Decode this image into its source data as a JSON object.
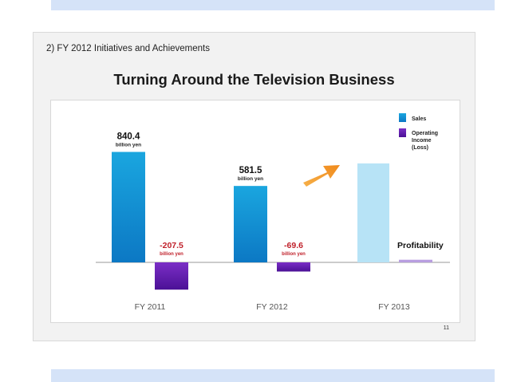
{
  "slide": {
    "heading": "2) FY 2012 Initiatives and Achievements",
    "title": "Turning Around the Television Business",
    "page_number": "11"
  },
  "colors": {
    "sales_top": "#1aa6df",
    "sales_bottom": "#0c78c4",
    "operating_top": "#7b2ec6",
    "operating_bottom": "#4b1196",
    "negative_label": "#c0202a",
    "forecast_sales": "#b7e3f6",
    "forecast_operating": "#b89ee0",
    "arrow": "#f08a1c"
  },
  "chart_data": {
    "type": "bar",
    "categories": [
      "FY 2011",
      "FY 2012",
      "FY 2013"
    ],
    "series": [
      {
        "name": "Sales",
        "values": [
          840.4,
          581.5,
          null
        ],
        "labels": [
          "840.4",
          "581.5",
          ""
        ]
      },
      {
        "name": "Operating Income (Loss)",
        "values": [
          -207.5,
          -69.6,
          null
        ],
        "labels": [
          "-207.5",
          "-69.6",
          ""
        ]
      }
    ],
    "unit_label": "billion yen",
    "forecast": {
      "category": "FY 2013",
      "sales_value": 753,
      "operating_value": 20,
      "annotation": "Profitability"
    },
    "legend": {
      "position": "top-right",
      "entries": [
        "Sales",
        "Operating Income (Loss)"
      ]
    },
    "ylim": [
      -220,
      860
    ],
    "grid": false
  }
}
